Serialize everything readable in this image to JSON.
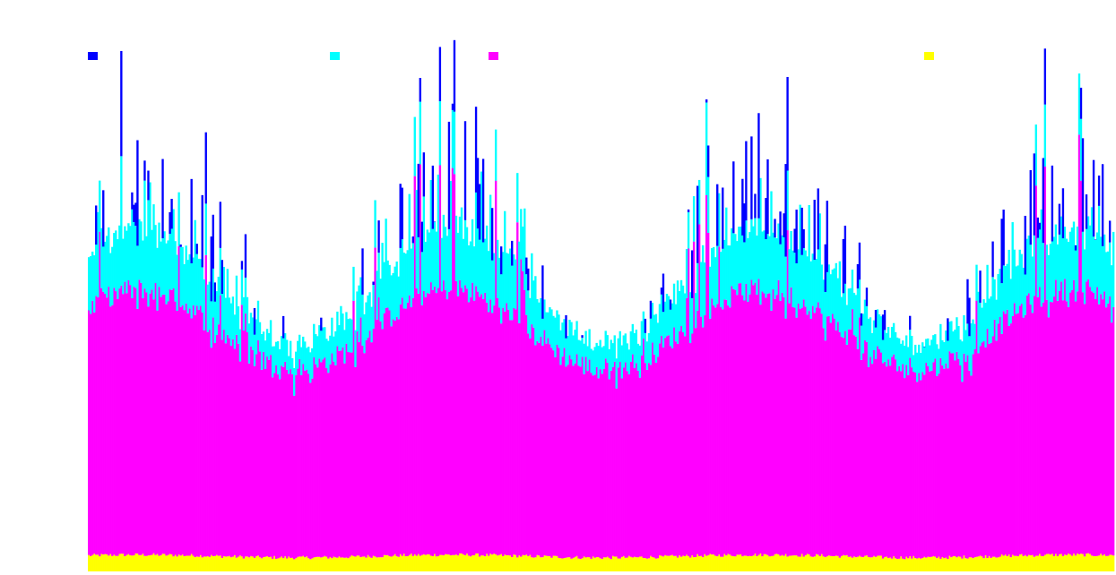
{
  "chart_data": {
    "type": "area",
    "title": "",
    "xlabel": "",
    "ylabel": "",
    "stacked": true,
    "grid": false,
    "legend_placement": "top",
    "ylim": [
      0,
      100
    ],
    "x_points": 570,
    "series": [
      {
        "color": "#ffff00",
        "base": 2.5,
        "amp": 0.5,
        "spikes": 0
      },
      {
        "color": "#ff00ff",
        "base": 34,
        "amp": 14,
        "spikes": 0.35
      },
      {
        "color": "#00ffff",
        "base": 5,
        "amp": 6,
        "spikes": 0.5
      },
      {
        "color": "#0000ff",
        "base": 0,
        "amp": 14,
        "spikes": 0.8
      }
    ],
    "legend": [
      {
        "color": "#0000ff"
      },
      {
        "color": "#00ffff"
      },
      {
        "color": "#ff00ff"
      },
      {
        "color": "#ffff00"
      }
    ]
  }
}
